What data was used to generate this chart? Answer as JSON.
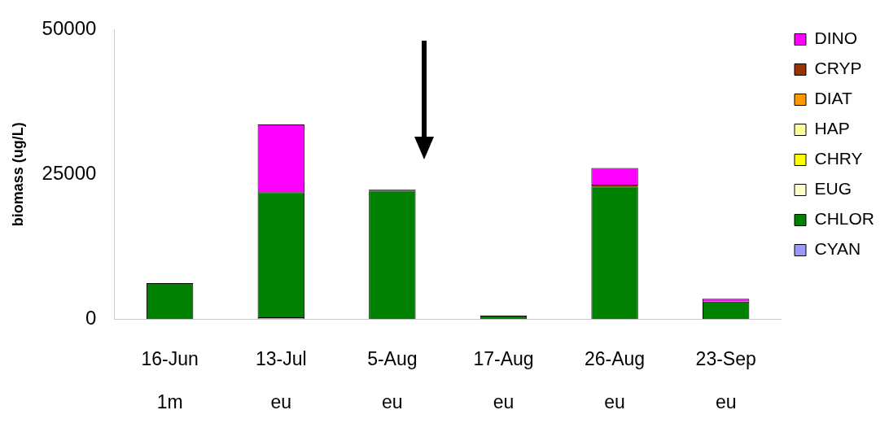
{
  "chart_data": {
    "type": "bar",
    "stacked": true,
    "ylabel": "biomass (ug/L)",
    "categories": [
      "16-Jun\n1m",
      "13-Jul\neu",
      "5-Aug\neu",
      "17-Aug\neu",
      "26-Aug\neu",
      "23-Sep\neu"
    ],
    "ylim": [
      0,
      50000
    ],
    "yticks": [
      0,
      25000,
      50000
    ],
    "grid": false,
    "legend": "right",
    "series": [
      {
        "name": "CYAN",
        "color": "#9999ff",
        "values": [
          null,
          300,
          null,
          null,
          null,
          null
        ]
      },
      {
        "name": "CHLOR",
        "color": "#008000",
        "values": [
          6200,
          21600,
          22200,
          600,
          22900,
          3000
        ]
      },
      {
        "name": "EUG",
        "color": "#ffffcc",
        "values": [
          null,
          null,
          null,
          null,
          null,
          null
        ]
      },
      {
        "name": "CHRY",
        "color": "#ffff00",
        "values": [
          null,
          null,
          null,
          null,
          null,
          null
        ]
      },
      {
        "name": "HAP",
        "color": "#ffff99",
        "values": [
          null,
          null,
          null,
          null,
          null,
          null
        ]
      },
      {
        "name": "DIAT",
        "color": "#ff9900",
        "values": [
          null,
          null,
          null,
          null,
          null,
          null
        ]
      },
      {
        "name": "CRYP",
        "color": "#993300",
        "values": [
          null,
          null,
          200,
          null,
          300,
          null
        ]
      },
      {
        "name": "DINO",
        "color": "#ff00ff",
        "values": [
          null,
          11700,
          null,
          null,
          2900,
          500
        ]
      }
    ]
  }
}
